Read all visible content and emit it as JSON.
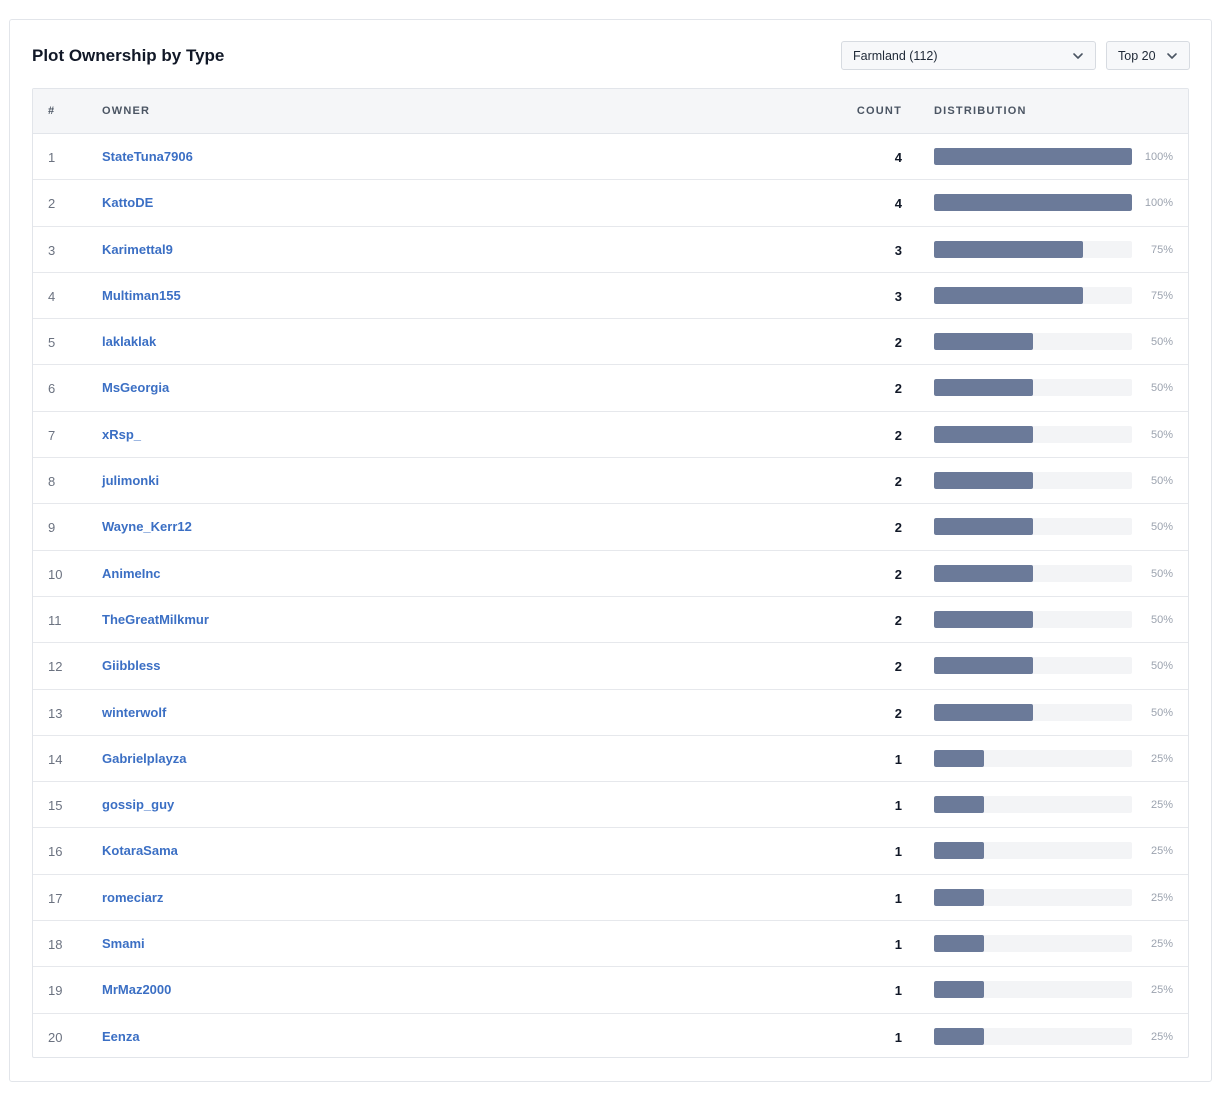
{
  "title": "Plot Ownership by Type",
  "type_select": {
    "value": "Farmland (112)"
  },
  "top_select": {
    "value": "Top 20"
  },
  "columns": {
    "index": "#",
    "owner": "OWNER",
    "count": "COUNT",
    "distribution": "DISTRIBUTION"
  },
  "colors": {
    "bar": "#6b7a99",
    "link": "#3b6fc4",
    "track": "#f3f4f6"
  },
  "rows": [
    {
      "idx": "1",
      "owner": "StateTuna7906",
      "count": "4",
      "pct": "100%",
      "fraction": 1.0
    },
    {
      "idx": "2",
      "owner": "KattoDE",
      "count": "4",
      "pct": "100%",
      "fraction": 1.0
    },
    {
      "idx": "3",
      "owner": "Karimettal9",
      "count": "3",
      "pct": "75%",
      "fraction": 0.75
    },
    {
      "idx": "4",
      "owner": "Multiman155",
      "count": "3",
      "pct": "75%",
      "fraction": 0.75
    },
    {
      "idx": "5",
      "owner": "laklaklak",
      "count": "2",
      "pct": "50%",
      "fraction": 0.5
    },
    {
      "idx": "6",
      "owner": "MsGeorgia",
      "count": "2",
      "pct": "50%",
      "fraction": 0.5
    },
    {
      "idx": "7",
      "owner": "xRsp_",
      "count": "2",
      "pct": "50%",
      "fraction": 0.5
    },
    {
      "idx": "8",
      "owner": "julimonki",
      "count": "2",
      "pct": "50%",
      "fraction": 0.5
    },
    {
      "idx": "9",
      "owner": "Wayne_Kerr12",
      "count": "2",
      "pct": "50%",
      "fraction": 0.5
    },
    {
      "idx": "10",
      "owner": "AnimeInc",
      "count": "2",
      "pct": "50%",
      "fraction": 0.5
    },
    {
      "idx": "11",
      "owner": "TheGreatMilkmur",
      "count": "2",
      "pct": "50%",
      "fraction": 0.5
    },
    {
      "idx": "12",
      "owner": "Giibbless",
      "count": "2",
      "pct": "50%",
      "fraction": 0.5
    },
    {
      "idx": "13",
      "owner": "winterwolf",
      "count": "2",
      "pct": "50%",
      "fraction": 0.5
    },
    {
      "idx": "14",
      "owner": "Gabrielplayza",
      "count": "1",
      "pct": "25%",
      "fraction": 0.25
    },
    {
      "idx": "15",
      "owner": "gossip_guy",
      "count": "1",
      "pct": "25%",
      "fraction": 0.25
    },
    {
      "idx": "16",
      "owner": "KotaraSama",
      "count": "1",
      "pct": "25%",
      "fraction": 0.25
    },
    {
      "idx": "17",
      "owner": "romeciarz",
      "count": "1",
      "pct": "25%",
      "fraction": 0.25
    },
    {
      "idx": "18",
      "owner": "Smami",
      "count": "1",
      "pct": "25%",
      "fraction": 0.25
    },
    {
      "idx": "19",
      "owner": "MrMaz2000",
      "count": "1",
      "pct": "25%",
      "fraction": 0.25
    },
    {
      "idx": "20",
      "owner": "Eenza",
      "count": "1",
      "pct": "25%",
      "fraction": 0.25
    }
  ]
}
